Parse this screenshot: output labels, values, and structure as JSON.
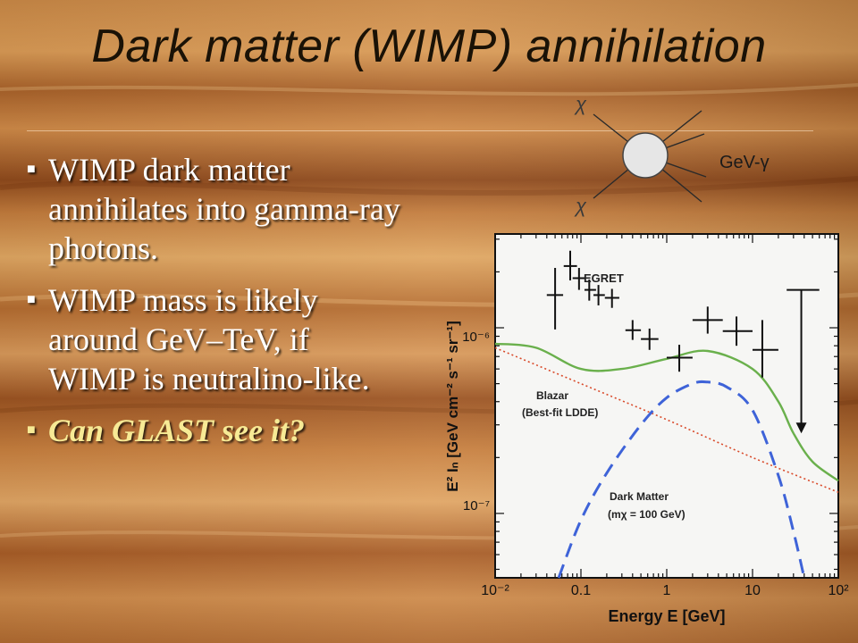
{
  "slide": {
    "title": "Dark matter (WIMP) annihilation",
    "bullets": [
      {
        "text": "WIMP dark matter annihilates into gamma-ray photons.",
        "highlight": false
      },
      {
        "text": "WIMP mass is likely around GeV–TeV, if WIMP is neutralino-like.",
        "highlight": false
      },
      {
        "text": "Can GLAST see it?",
        "highlight": true
      }
    ]
  },
  "diagram": {
    "particle_top": "χ",
    "particle_bottom": "χ",
    "label": "GeV-γ"
  },
  "chart_data": {
    "type": "scatter",
    "xlabel": "Energy E [GeV]",
    "ylabel": "E² Iₙ [GeV cm⁻² s⁻¹ sr⁻¹]",
    "x_scale": "log",
    "y_scale": "log",
    "xlim": [
      0.01,
      100
    ],
    "ylim": [
      4.5e-08,
      3.2e-06
    ],
    "x_ticklabels": [
      "10⁻²",
      "0.1",
      "1",
      "10",
      "10²"
    ],
    "y_ticklabels": [
      "10⁻⁶",
      "10⁻⁷"
    ],
    "annotations": {
      "egret": "EGRET",
      "blazar_line1": "Blazar",
      "blazar_line2": "(Best-fit LDDE)",
      "dm_line1": "Dark Matter",
      "dm_line2": "(mχ = 100 GeV)"
    },
    "egret_points": [
      {
        "x": 0.05,
        "y": 1.5e-06,
        "xerr": [
          0.04,
          0.062
        ],
        "yerr": [
          9.8e-07,
          2.1e-06
        ]
      },
      {
        "x": 0.075,
        "y": 2.15e-06,
        "xerr": [
          0.063,
          0.09
        ],
        "yerr": [
          1.8e-06,
          2.6e-06
        ]
      },
      {
        "x": 0.095,
        "y": 1.85e-06,
        "xerr": [
          0.08,
          0.115
        ],
        "yerr": [
          1.6e-06,
          2.1e-06
        ]
      },
      {
        "x": 0.125,
        "y": 1.6e-06,
        "xerr": [
          0.11,
          0.15
        ],
        "yerr": [
          1.4e-06,
          1.82e-06
        ]
      },
      {
        "x": 0.16,
        "y": 1.5e-06,
        "xerr": [
          0.14,
          0.19
        ],
        "yerr": [
          1.32e-06,
          1.7e-06
        ]
      },
      {
        "x": 0.23,
        "y": 1.45e-06,
        "xerr": [
          0.19,
          0.28
        ],
        "yerr": [
          1.28e-06,
          1.62e-06
        ]
      },
      {
        "x": 0.4,
        "y": 9.7e-07,
        "xerr": [
          0.33,
          0.5
        ],
        "yerr": [
          8.6e-07,
          1.1e-06
        ]
      },
      {
        "x": 0.63,
        "y": 8.7e-07,
        "xerr": [
          0.5,
          0.8
        ],
        "yerr": [
          7.6e-07,
          9.9e-07
        ]
      },
      {
        "x": 1.4,
        "y": 6.9e-07,
        "xerr": [
          1.0,
          2.0
        ],
        "yerr": [
          5.8e-07,
          8.1e-07
        ]
      },
      {
        "x": 3.0,
        "y": 1.1e-06,
        "xerr": [
          2.0,
          4.5
        ],
        "yerr": [
          9.3e-07,
          1.3e-06
        ]
      },
      {
        "x": 6.5,
        "y": 9.6e-07,
        "xerr": [
          4.5,
          10
        ],
        "yerr": [
          8e-07,
          1.15e-06
        ]
      },
      {
        "x": 13,
        "y": 7.6e-07,
        "xerr": [
          10,
          20
        ],
        "yerr": [
          5.4e-07,
          1.1e-06
        ]
      }
    ],
    "upper_limit": {
      "x": 37,
      "y": 1.6e-06,
      "xerr": [
        25,
        60
      ],
      "y_arrow_to": 2.7e-07
    },
    "series": [
      {
        "style": "green-solid",
        "color": "#6ab04c",
        "x": [
          0.01,
          0.03,
          0.1,
          0.3,
          1,
          3,
          10,
          20,
          30,
          50,
          100
        ],
        "y": [
          8.2e-07,
          7.8e-07,
          6e-07,
          6e-07,
          6.8e-07,
          7.5e-07,
          6e-07,
          4e-07,
          2.7e-07,
          1.9e-07,
          1.5e-07
        ]
      },
      {
        "style": "red-dotted",
        "color": "#d94a2a",
        "x": [
          0.01,
          0.1,
          1,
          10,
          100
        ],
        "y": [
          7.8e-07,
          5e-07,
          3.2e-07,
          2e-07,
          1.3e-07
        ]
      },
      {
        "style": "blue-dashed",
        "color": "#3e63d8",
        "x": [
          0.055,
          0.1,
          0.2,
          0.5,
          1,
          2,
          3,
          5,
          10,
          20,
          30,
          40
        ],
        "y": [
          4.5e-08,
          9.2e-08,
          1.65e-07,
          3e-07,
          4.2e-07,
          5e-07,
          5.1e-07,
          4.8e-07,
          3.6e-07,
          1.6e-07,
          8e-08,
          4.5e-08
        ]
      }
    ]
  }
}
